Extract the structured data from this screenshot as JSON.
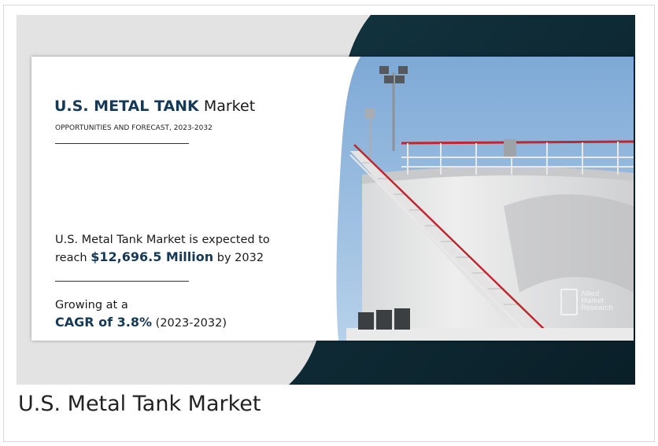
{
  "infographic": {
    "title_bold": "U.S. METAL TANK",
    "title_rest": "Market",
    "subtitle": "OPPORTUNITIES AND FORECAST, 2023-2032",
    "expect_prefix": "U.S. Metal Tank Market is expected to reach",
    "expect_value": "$12,696.5 Million",
    "expect_suffix": "by 2032",
    "growth_prefix": "Growing at a",
    "growth_value": "CAGR of 3.8%",
    "growth_period": "(2023-2032)",
    "logo_line1": "Allied",
    "logo_line2": "Market",
    "logo_line3": "Research"
  },
  "caption": "U.S. Metal Tank Market",
  "colors": {
    "accent": "#163a55",
    "dark_band": "#0f2a35",
    "sky": "#8fb6dc",
    "railing": "#c0262d"
  }
}
